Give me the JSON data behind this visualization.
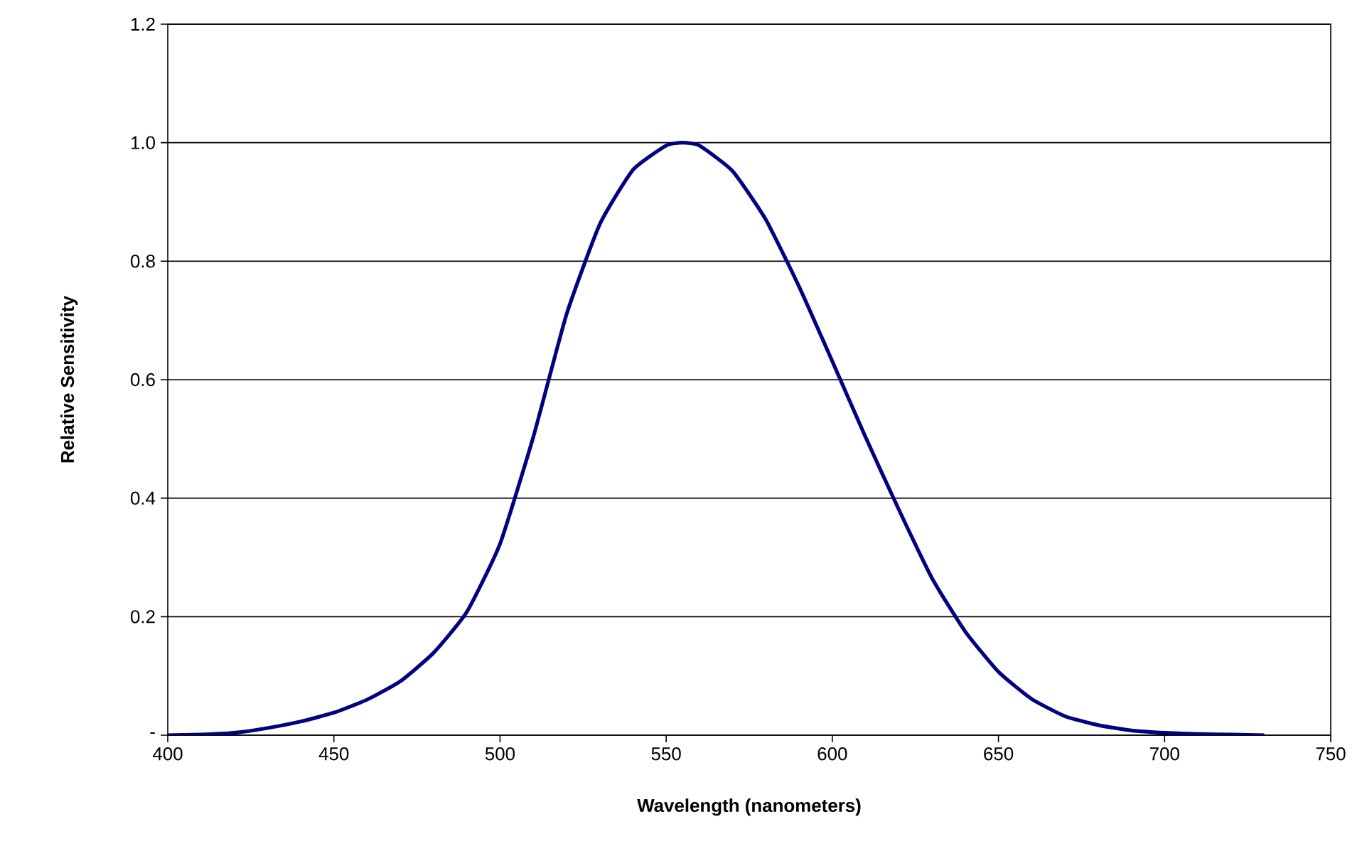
{
  "chart_data": {
    "type": "line",
    "xlabel": "Wavelength (nanometers)",
    "ylabel": "Relative Sensitivity",
    "x": [
      400,
      410,
      420,
      430,
      440,
      450,
      460,
      470,
      480,
      490,
      500,
      510,
      520,
      530,
      540,
      550,
      555,
      560,
      570,
      580,
      590,
      600,
      610,
      620,
      630,
      640,
      650,
      660,
      670,
      680,
      690,
      700,
      710,
      720,
      730
    ],
    "series": [
      {
        "color": "#000080",
        "values": [
          0,
          0.001,
          0.004,
          0.012,
          0.023,
          0.038,
          0.06,
          0.091,
          0.139,
          0.208,
          0.323,
          0.503,
          0.71,
          0.862,
          0.954,
          0.995,
          1.0,
          0.995,
          0.952,
          0.87,
          0.757,
          0.631,
          0.503,
          0.381,
          0.265,
          0.175,
          0.107,
          0.061,
          0.032,
          0.017,
          0.008,
          0.004,
          0.002,
          0.001,
          0
        ]
      }
    ],
    "xlim": [
      400,
      750
    ],
    "ylim": [
      0,
      1.2
    ],
    "xticks": [
      400,
      450,
      500,
      550,
      600,
      650,
      700,
      750
    ],
    "yticks": [
      {
        "value": 0,
        "label": "-"
      },
      {
        "value": 0.2,
        "label": "0.2"
      },
      {
        "value": 0.4,
        "label": "0.4"
      },
      {
        "value": 0.6,
        "label": "0.6"
      },
      {
        "value": 0.8,
        "label": "0.8"
      },
      {
        "value": 1.0,
        "label": "1.0"
      },
      {
        "value": 1.2,
        "label": "1.2"
      }
    ],
    "grid": "y",
    "marker": "none",
    "line_style": "solid"
  }
}
